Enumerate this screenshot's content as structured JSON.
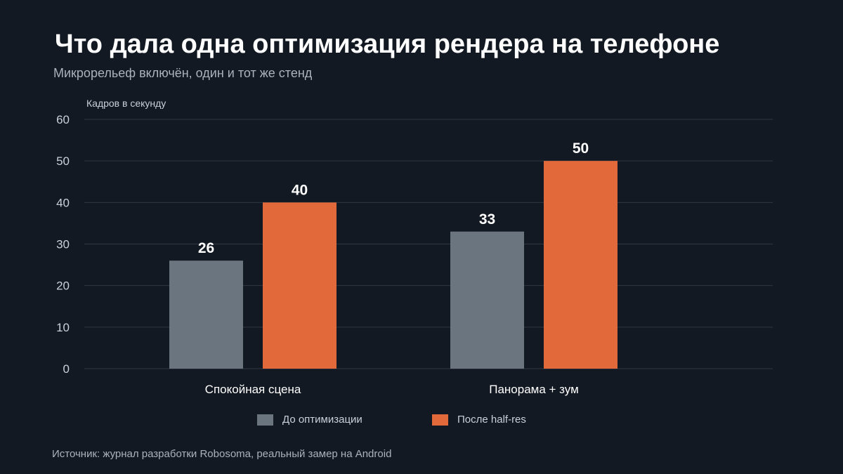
{
  "title": "Что дала одна оптимизация рендера на телефоне",
  "subtitle": "Микрорельеф включён, один и тот же стенд",
  "source": "Источник: журнал разработки Robosoma, реальный замер на Android",
  "colors": {
    "before": "#6a7580",
    "after": "#e2693a",
    "grid": "#2f3744",
    "background": "#131922"
  },
  "chart_data": {
    "type": "bar",
    "ylabel": "Кадров в секунду",
    "xlabel": "",
    "ylim": [
      0,
      60
    ],
    "yticks": [
      0,
      10,
      20,
      30,
      40,
      50,
      60
    ],
    "grid": true,
    "legend": "bottom",
    "categories": [
      "Спокойная сцена",
      "Панорама + зум"
    ],
    "series": [
      {
        "name": "До оптимизации",
        "values": [
          26,
          33
        ]
      },
      {
        "name": "После half-res",
        "values": [
          40,
          50
        ]
      }
    ]
  }
}
